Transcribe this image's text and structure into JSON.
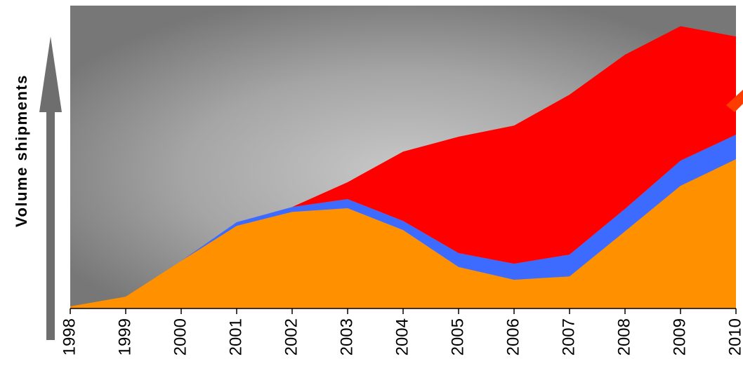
{
  "chart_data": {
    "type": "stacked_area",
    "y_axis_label": "Volume shipments",
    "categories": [
      "1998",
      "1999",
      "2000",
      "2001",
      "2002",
      "2003",
      "2004",
      "2005",
      "2006",
      "2007",
      "2008",
      "2009",
      "2010"
    ],
    "series": [
      {
        "color": "#ff9000",
        "values": [
          0.7,
          3.9,
          15.7,
          27.3,
          31.9,
          33.1,
          25.9,
          13.7,
          9.5,
          10.6,
          25.5,
          40.5,
          49.3
        ]
      },
      {
        "color": "#3d6bff",
        "values": [
          0,
          0,
          0,
          1.2,
          1.6,
          3.0,
          3.0,
          4.6,
          5.3,
          7.2,
          7.4,
          8.3,
          8.1
        ]
      },
      {
        "color": "#ff0000",
        "values": [
          0,
          0,
          0,
          0,
          0,
          5.6,
          22.9,
          38.4,
          45.6,
          52.8,
          50.9,
          44.4,
          32.4
        ]
      }
    ],
    "ylim": [
      0,
      100
    ]
  }
}
